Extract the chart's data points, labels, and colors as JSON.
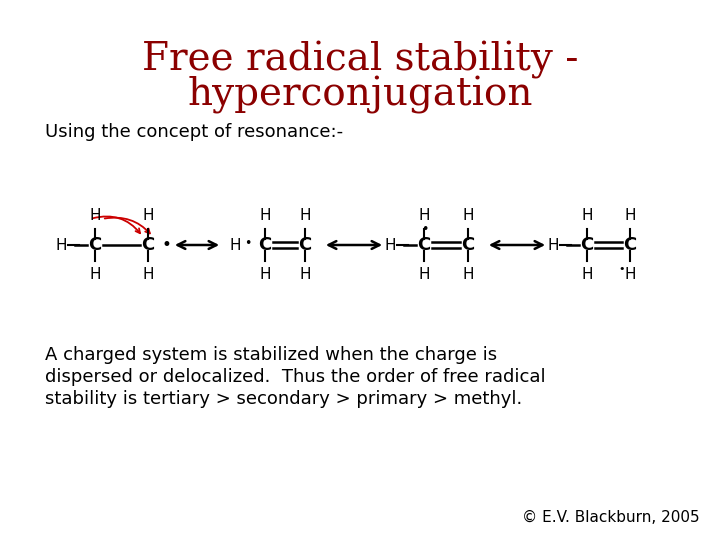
{
  "title_line1": "Free radical stability -",
  "title_line2": "hyperconjugation",
  "title_color": "#8B0000",
  "title_fontsize": 28,
  "subtitle": "Using the concept of resonance:-",
  "subtitle_fontsize": 13,
  "subtitle_color": "#000000",
  "body_text_line1": "A charged system is stabilized when the charge is",
  "body_text_line2": "dispersed or delocalized.  Thus the order of free radical",
  "body_text_line3": "stability is tertiary > secondary > primary > methyl.",
  "body_fontsize": 13,
  "body_color": "#000000",
  "copyright": "© E.V. Blackburn, 2005",
  "copyright_fontsize": 11,
  "copyright_color": "#000000",
  "bg_color": "#ffffff",
  "arrow_color": "#000000",
  "red_color": "#cc0000"
}
